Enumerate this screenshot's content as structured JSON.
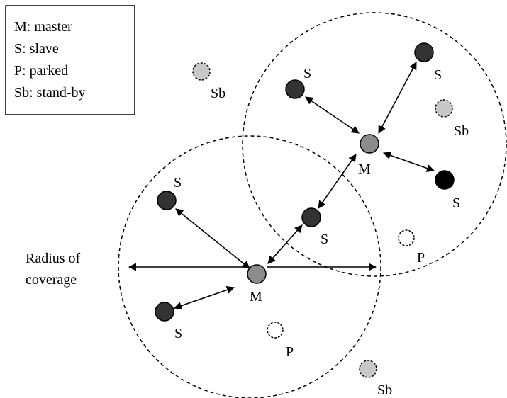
{
  "legend": {
    "entries": [
      "M: master",
      "S: slave",
      "P: parked",
      "Sb: stand-by"
    ]
  },
  "coverage_label": {
    "line1": "Radius of",
    "line2": "coverage"
  },
  "labels": {
    "master": "M",
    "slave": "S",
    "parked": "P",
    "standby": "Sb"
  },
  "colors": {
    "master_fill": "#8c8c8c",
    "slave_fill": "#333333",
    "slave_active_fill": "#000000",
    "standby_fill": "#c8c8c8",
    "parked_fill": "#ffffff",
    "stroke": "#000000"
  }
}
